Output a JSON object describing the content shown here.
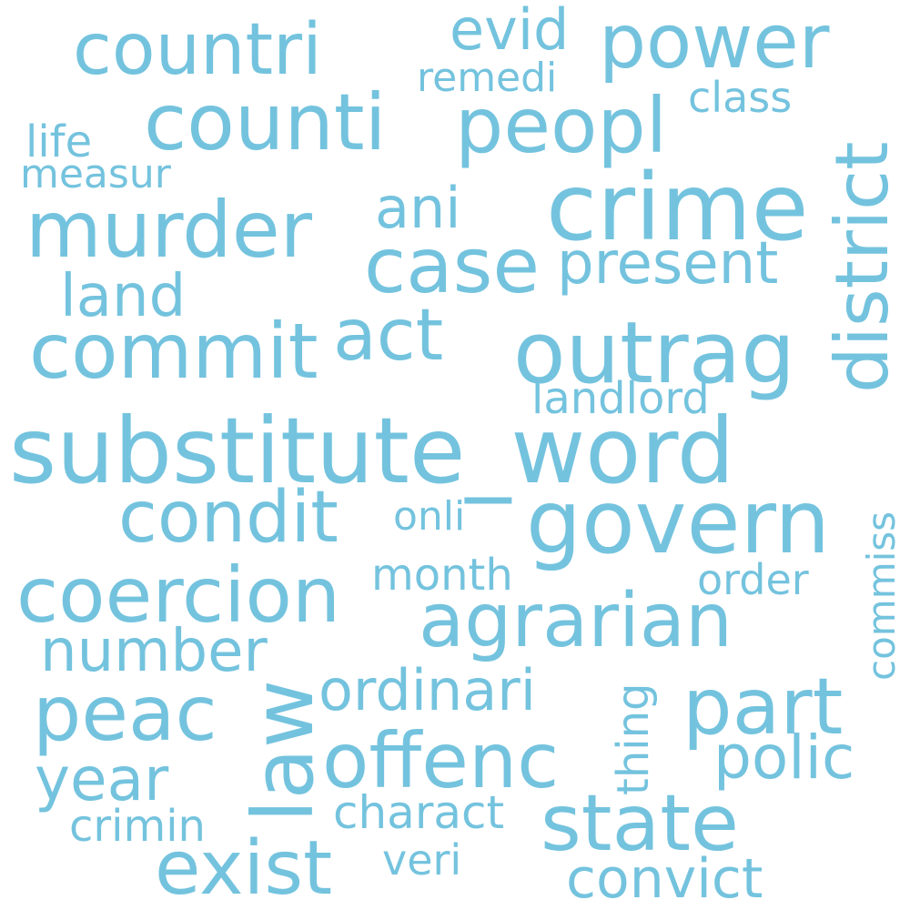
{
  "color": "#74c3de",
  "words": {
    "countri": "countri",
    "evid": "evid",
    "power": "power",
    "remedi": "remedi",
    "district": "district",
    "class": "class",
    "counti": "counti",
    "peopl": "peopl",
    "life": "life",
    "measur": "measur",
    "crime": "crime",
    "murder": "murder",
    "ani": "ani",
    "case": "case",
    "present": "present",
    "land": "land",
    "act": "act",
    "commit": "commit",
    "outrag": "outrag",
    "landlord": "landlord",
    "substitute_word": "substitute_word",
    "condit": "condit",
    "onli": "onli",
    "govern": "govern",
    "commiss": "commiss",
    "coercion": "coercion",
    "month": "month",
    "order": "order",
    "agrarian": "agrarian",
    "number": "number",
    "law": "law",
    "thing": "thing",
    "ordinari": "ordinari",
    "peac": "peac",
    "part": "part",
    "offenc": "offenc",
    "polic": "polic",
    "year": "year",
    "charact": "charact",
    "state": "state",
    "crimin": "crimin",
    "exist": "exist",
    "veri": "veri",
    "convict": "convict"
  }
}
